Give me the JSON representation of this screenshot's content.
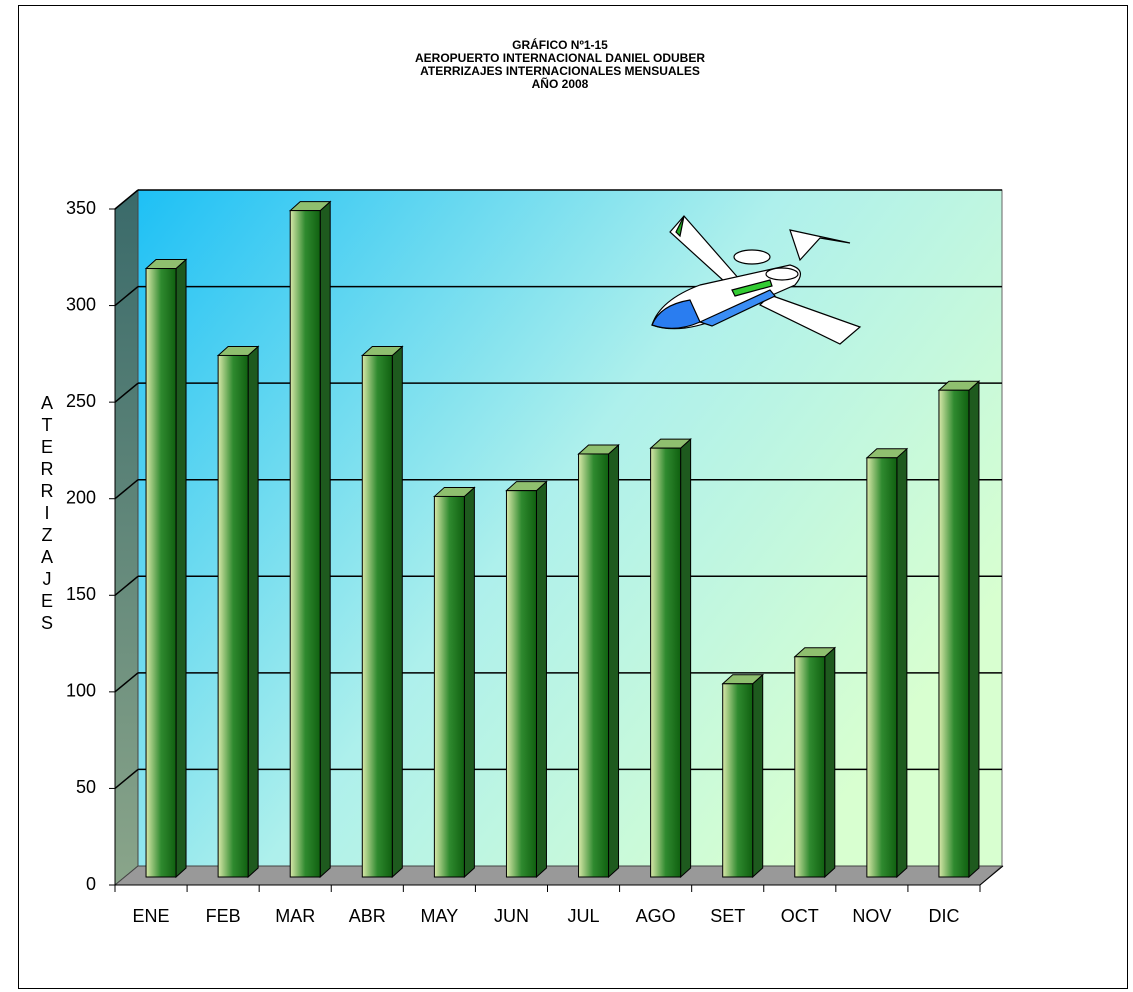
{
  "chart_data": {
    "type": "bar3d",
    "title_lines": [
      "GRÁFICO Nº1-15",
      "AEROPUERTO INTERNACIONAL DANIEL ODUBER",
      "ATERRIZAJES INTERNACIONALES MENSUALES",
      "AÑO 2008"
    ],
    "y_label": "ATERRIZAJES",
    "categories": [
      "ENE",
      "FEB",
      "MAR",
      "ABR",
      "MAY",
      "JUN",
      "JUL",
      "AGO",
      "SET",
      "OCT",
      "NOV",
      "DIC"
    ],
    "values": [
      314,
      269,
      344,
      269,
      196,
      199,
      218,
      221,
      99,
      113,
      216,
      251
    ],
    "ylim": [
      0,
      350
    ],
    "yticks": [
      0,
      50,
      100,
      150,
      200,
      250,
      300,
      350
    ],
    "grid": true
  }
}
